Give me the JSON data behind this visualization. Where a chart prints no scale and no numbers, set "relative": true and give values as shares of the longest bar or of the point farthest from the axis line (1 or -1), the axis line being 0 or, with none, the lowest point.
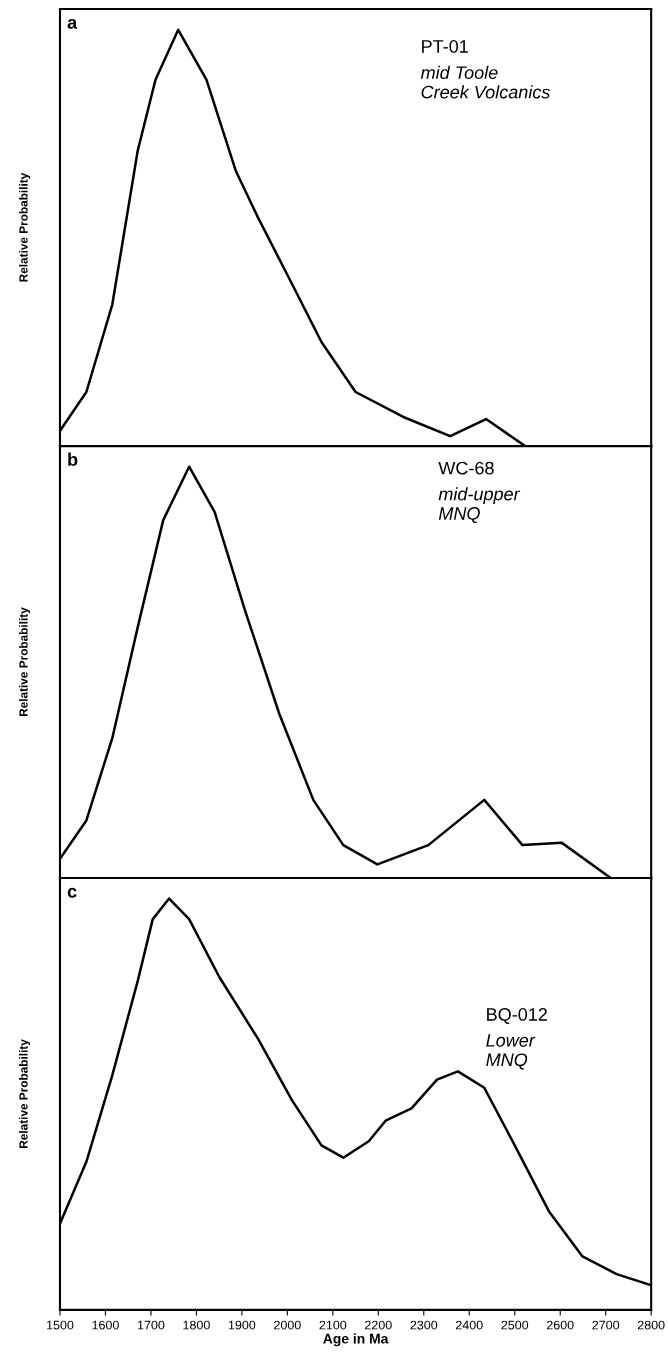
{
  "chart_data": [
    {
      "type": "line",
      "relative": true,
      "ylabel": "Relative Probability",
      "annotations": [
        "a",
        "PT-01",
        "mid Toole\nCreek Volcanics"
      ],
      "xlim": [
        1500,
        2800
      ],
      "tick_labels": false,
      "marker": "none",
      "line_style": "solid",
      "series": [
        {
          "color": "#000000",
          "x": [
            1502,
            1558,
            1615,
            1671,
            1710,
            1760,
            1822,
            1887,
            1935,
            2010,
            2075,
            2150,
            2255,
            2358,
            2437,
            2523
          ],
          "values": [
            0.04,
            0.13,
            0.34,
            0.71,
            0.88,
            1.0,
            0.88,
            0.66,
            0.55,
            0.39,
            0.25,
            0.13,
            0.07,
            0.024,
            0.065,
            0.0
          ]
        }
      ]
    },
    {
      "type": "line",
      "relative": true,
      "ylabel": "Relative Probability",
      "annotations": [
        "b",
        "WC-68",
        "mid-upper\nMNQ"
      ],
      "xlim": [
        1500,
        2800
      ],
      "tick_labels": false,
      "marker": "none",
      "line_style": "solid",
      "series": [
        {
          "color": "#000000",
          "x": [
            1502,
            1558,
            1615,
            1671,
            1727,
            1784,
            1840,
            1907,
            1982,
            2057,
            2123,
            2198,
            2310,
            2433,
            2517,
            2603,
            2711
          ],
          "values": [
            0.05,
            0.14,
            0.34,
            0.61,
            0.87,
            1.0,
            0.89,
            0.65,
            0.4,
            0.19,
            0.08,
            0.033,
            0.08,
            0.19,
            0.08,
            0.086,
            0.0
          ]
        }
      ]
    },
    {
      "type": "line",
      "relative": true,
      "ylabel": "Relative Probability",
      "xlabel": "Age in Ma",
      "annotations": [
        "c",
        "BQ-012",
        "Lower\nMNQ"
      ],
      "xlim": [
        1500,
        2800
      ],
      "xticks": [
        1500,
        1600,
        1700,
        1800,
        1900,
        2000,
        2100,
        2200,
        2300,
        2400,
        2500,
        2600,
        2700,
        2800
      ],
      "tick_labels": "x",
      "marker": "none",
      "line_style": "solid",
      "series": [
        {
          "color": "#000000",
          "x": [
            1500,
            1558,
            1615,
            1671,
            1704,
            1740,
            1784,
            1850,
            1935,
            2010,
            2075,
            2123,
            2179,
            2216,
            2273,
            2329,
            2375,
            2433,
            2500,
            2575,
            2649,
            2724,
            2800
          ],
          "values": [
            0.21,
            0.36,
            0.57,
            0.8,
            0.95,
            1.0,
            0.95,
            0.81,
            0.66,
            0.51,
            0.4,
            0.37,
            0.41,
            0.46,
            0.49,
            0.56,
            0.58,
            0.54,
            0.4,
            0.24,
            0.13,
            0.087,
            0.06
          ]
        }
      ]
    }
  ]
}
